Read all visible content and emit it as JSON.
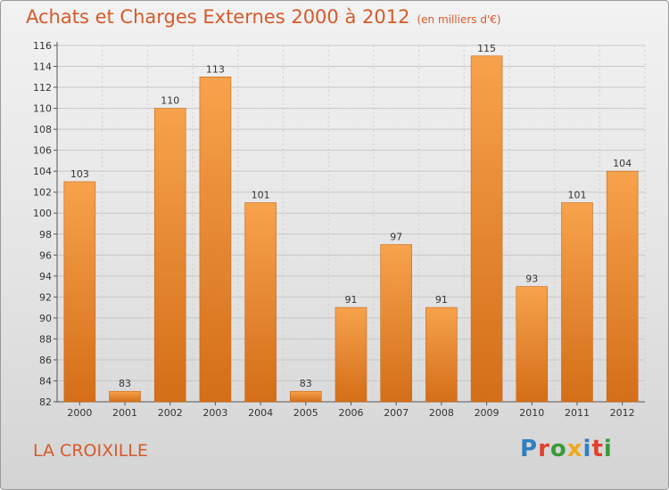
{
  "header": {
    "title": "Achats et Charges Externes 2000 à 2012",
    "unit": "(en milliers d'€)"
  },
  "footer": {
    "place": "LA CROIXILLE",
    "brand_letters": [
      "P",
      "r",
      "o",
      "x",
      "i",
      "t",
      "i"
    ],
    "brand_colors": [
      "#2f7fc1",
      "#e0402c",
      "#3a9b3a",
      "#f0a81e",
      "#2f7fc1",
      "#e0402c",
      "#3a9b3a"
    ]
  },
  "chart_data": {
    "type": "bar",
    "categories": [
      "2000",
      "2001",
      "2002",
      "2003",
      "2004",
      "2005",
      "2006",
      "2007",
      "2008",
      "2009",
      "2010",
      "2011",
      "2012"
    ],
    "values": [
      103,
      83,
      110,
      113,
      101,
      83,
      91,
      97,
      91,
      115,
      93,
      101,
      104
    ],
    "value_labels": [
      "103",
      "83",
      "110",
      "113",
      "101",
      "83",
      "91",
      "97",
      "91",
      "115",
      "93",
      "101",
      "104"
    ],
    "title": "Achats et Charges Externes 2000 à 2012",
    "xlabel": "",
    "ylabel": "",
    "ylim": [
      82,
      116
    ],
    "yticks": [
      82,
      84,
      86,
      88,
      90,
      92,
      94,
      96,
      98,
      100,
      102,
      104,
      106,
      108,
      110,
      112,
      114,
      116
    ],
    "grid": true,
    "bar_color": "#f0923a",
    "bar_color_dark": "#d66f1a",
    "legend": "none"
  }
}
